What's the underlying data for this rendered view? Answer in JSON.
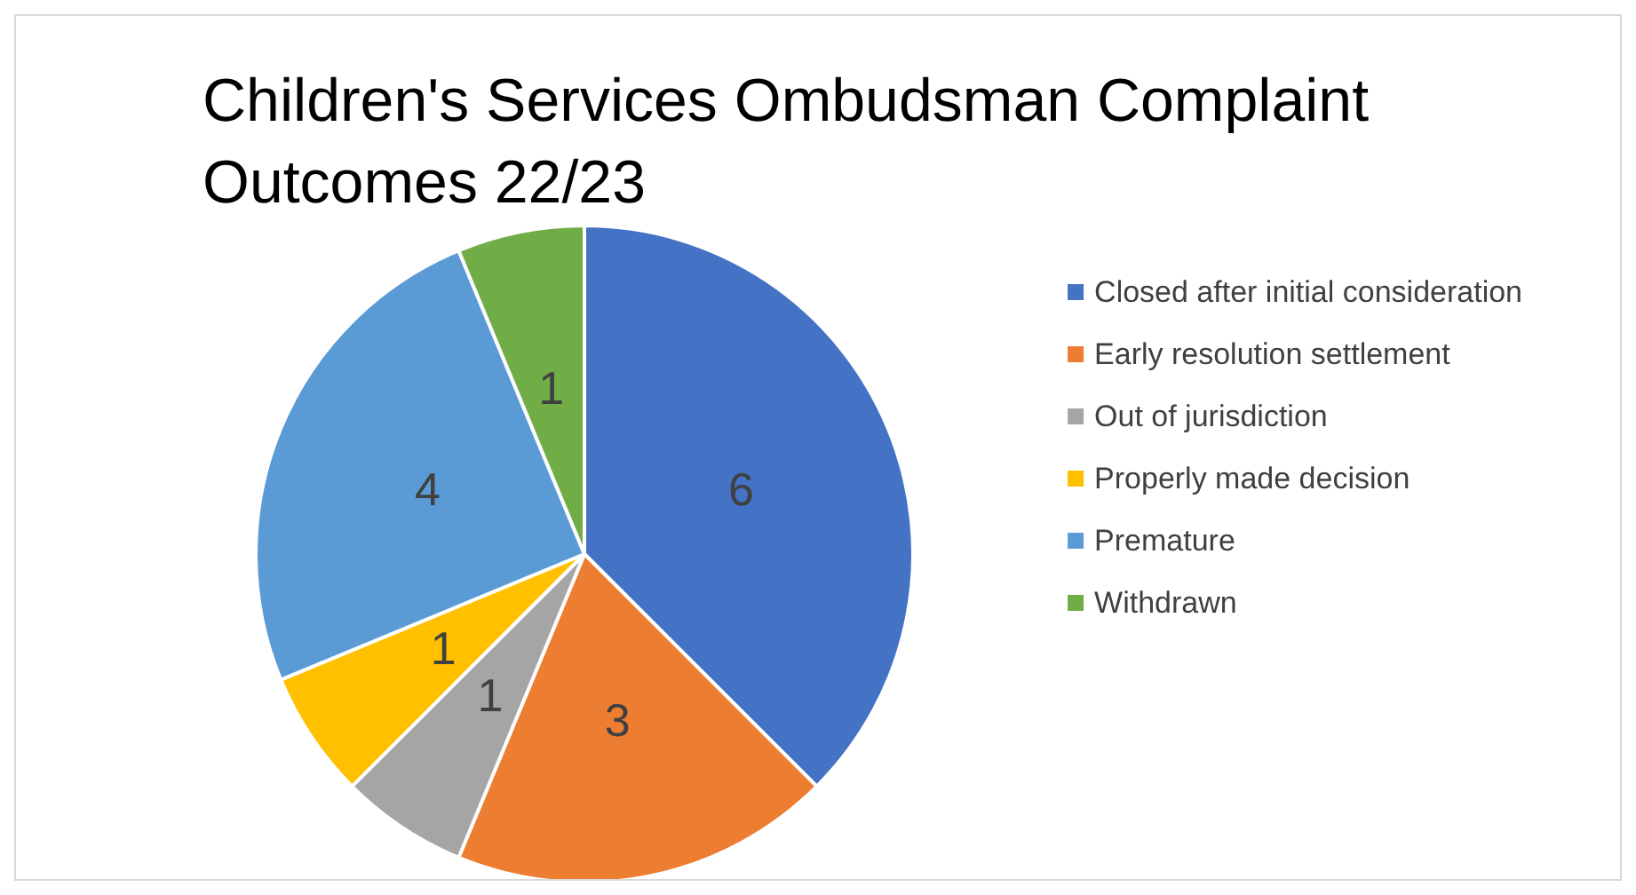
{
  "chart_data": {
    "type": "pie",
    "title": "Children's Services Ombudsman Complaint Outcomes 22/23",
    "categories": [
      "Closed after initial consideration",
      "Early resolution settlement",
      "Out of jurisdiction",
      "Properly made decision",
      "Premature",
      "Withdrawn"
    ],
    "values": [
      6,
      3,
      1,
      1,
      4,
      1
    ],
    "colors": [
      "#4472c4",
      "#ed7d31",
      "#a5a5a5",
      "#ffc000",
      "#5b9bd5",
      "#70ad47"
    ],
    "data_labels": true,
    "legend": "right"
  }
}
